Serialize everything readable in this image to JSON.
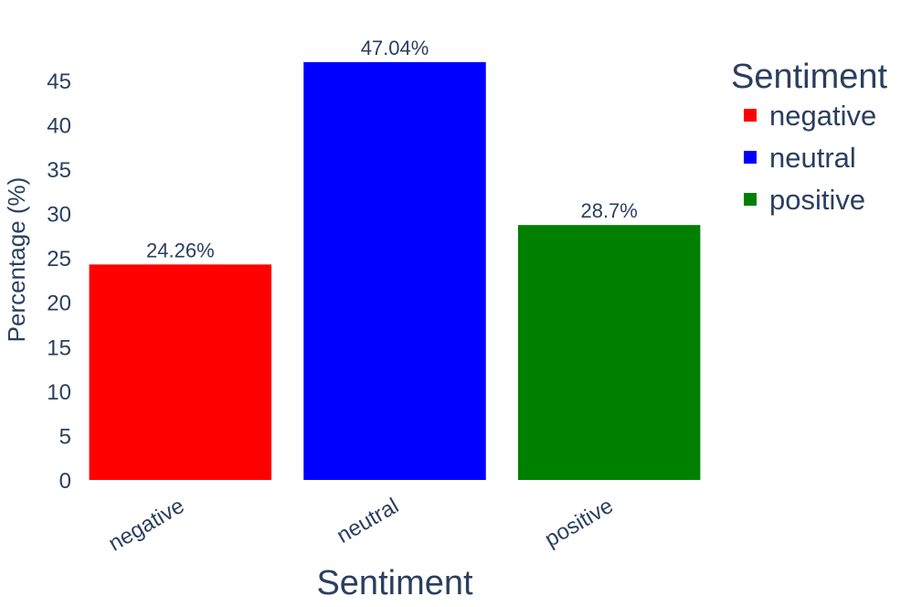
{
  "chart_data": {
    "type": "bar",
    "categories": [
      "negative",
      "neutral",
      "positive"
    ],
    "values": [
      24.26,
      47.04,
      28.7
    ],
    "data_labels": [
      "24.26%",
      "47.04%",
      "28.7%"
    ],
    "colors": [
      "#ff0000",
      "#0000ff",
      "#008000"
    ],
    "title": "",
    "xlabel": "Sentiment",
    "ylabel": "Percentage (%)",
    "ylim": [
      0,
      47.04
    ],
    "yticks": [
      0,
      5,
      10,
      15,
      20,
      25,
      30,
      35,
      40,
      45
    ],
    "grid": false,
    "legend": {
      "title": "Sentiment",
      "position": "top-right",
      "entries": [
        "negative",
        "neutral",
        "positive"
      ]
    }
  }
}
